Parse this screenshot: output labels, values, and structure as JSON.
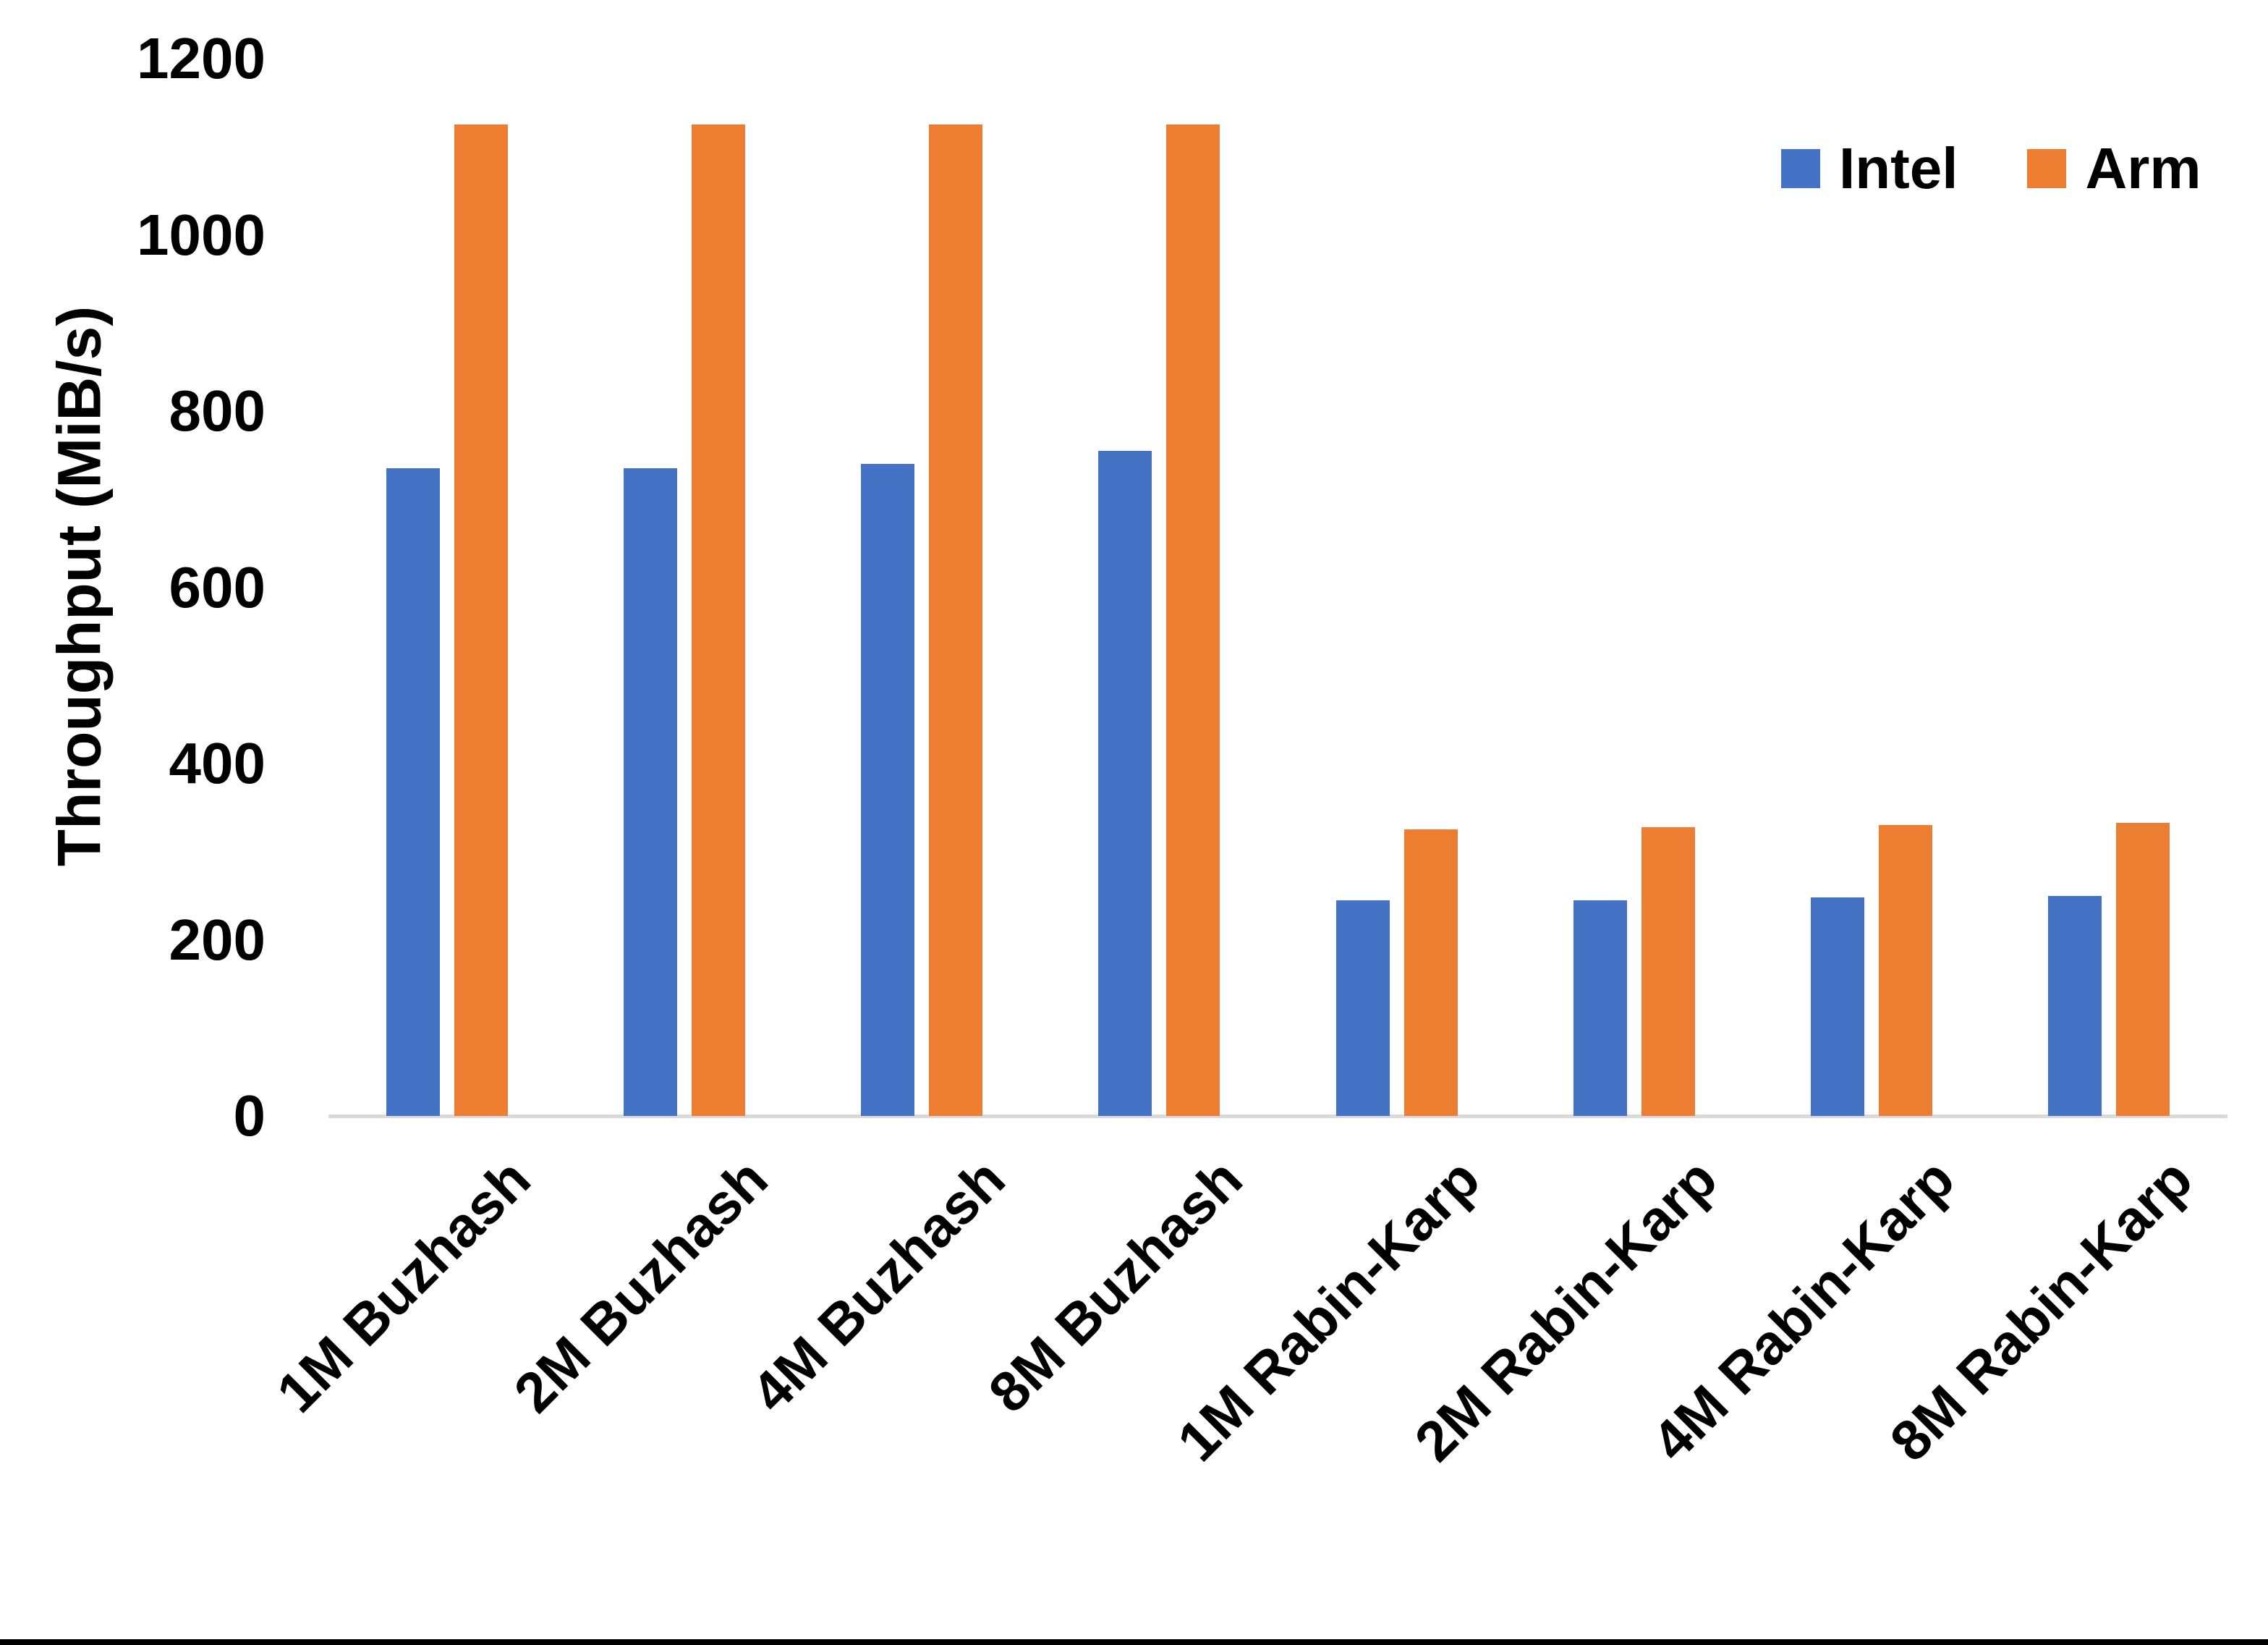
{
  "chart_data": {
    "type": "bar",
    "title": "",
    "xlabel": "",
    "ylabel": "Throughput (MiB/s)",
    "ymin": 0,
    "ymax": 1200,
    "yticks": [
      0,
      200,
      400,
      600,
      800,
      1000,
      1200
    ],
    "grid": false,
    "legend_position": "top-right",
    "categories": [
      "1M Buzhash",
      "2M Buzhash",
      "4M Buzhash",
      "8M Buzhash",
      "1M Rabin-Karp",
      "2M Rabin-Karp",
      "4M Rabin-Karp",
      "8M Rabin-Karp"
    ],
    "series": [
      {
        "name": "Intel",
        "color": "#4472C4",
        "values": [
          735,
          735,
          740,
          755,
          245,
          245,
          248,
          250
        ]
      },
      {
        "name": "Arm",
        "color": "#ED7D31",
        "values": [
          1125,
          1125,
          1125,
          1125,
          325,
          328,
          330,
          333
        ]
      }
    ],
    "colors": {
      "axis_line": "#D9D9D9",
      "text": "#000000",
      "background": "#FFFFFF",
      "bottom_border": "#000000"
    }
  }
}
